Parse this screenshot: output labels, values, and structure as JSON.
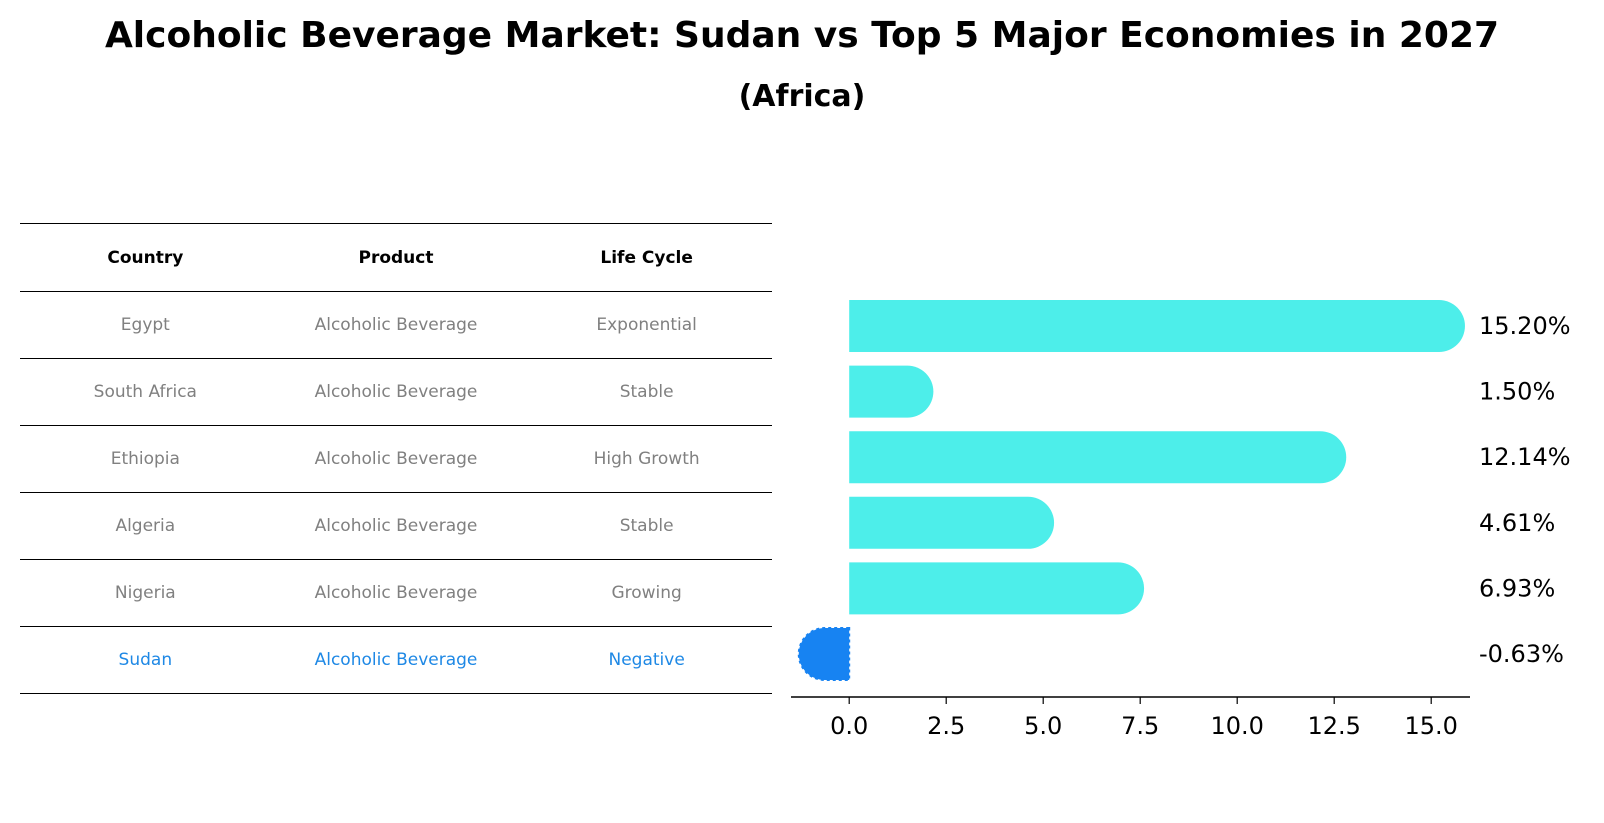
{
  "title": "Alcoholic Beverage Market: Sudan vs Top 5 Major Economies in 2027",
  "subtitle": "(Africa)",
  "table": {
    "headers": [
      "Country",
      "Product",
      "Life Cycle"
    ],
    "rows": [
      {
        "country": "Egypt",
        "product": "Alcoholic Beverage",
        "life_cycle": "Exponential"
      },
      {
        "country": "South Africa",
        "product": "Alcoholic Beverage",
        "life_cycle": "Stable"
      },
      {
        "country": "Ethiopia",
        "product": "Alcoholic Beverage",
        "life_cycle": "High Growth"
      },
      {
        "country": "Algeria",
        "product": "Alcoholic Beverage",
        "life_cycle": "Stable"
      },
      {
        "country": "Nigeria",
        "product": "Alcoholic Beverage",
        "life_cycle": "Growing"
      },
      {
        "country": "Sudan",
        "product": "Alcoholic Beverage",
        "life_cycle": "Negative"
      }
    ],
    "highlight_row": 5,
    "highlight_color": "#1e88e5",
    "text_color": "#808080"
  },
  "chart_data": {
    "type": "bar",
    "orientation": "horizontal",
    "categories": [
      "Egypt",
      "South Africa",
      "Ethiopia",
      "Algeria",
      "Nigeria",
      "Sudan"
    ],
    "values": [
      15.2,
      1.5,
      12.14,
      4.61,
      6.93,
      -0.63
    ],
    "value_labels": [
      "15.20%",
      "1.50%",
      "12.14%",
      "4.61%",
      "6.93%",
      "-0.63%"
    ],
    "xlim": [
      -1.5,
      16.0
    ],
    "xticks": [
      0.0,
      2.5,
      5.0,
      7.5,
      10.0,
      12.5,
      15.0
    ],
    "xtick_labels": [
      "0.0",
      "2.5",
      "5.0",
      "7.5",
      "10.0",
      "12.5",
      "15.0"
    ],
    "bar_color": "#4deeea",
    "highlight_color": "#1783f2",
    "highlight_index": 5,
    "grid": false
  }
}
